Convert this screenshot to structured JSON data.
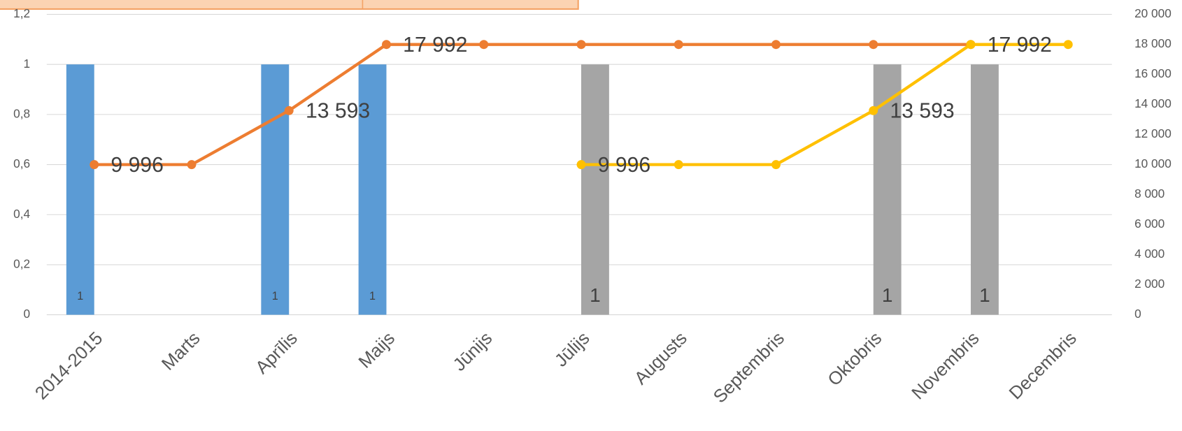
{
  "chart_data": {
    "type": "combo",
    "categories": [
      "2014-2015",
      "Marts",
      "Aprīlis",
      "Maijs",
      "Jūnijs",
      "Jūlijs",
      "Augusts",
      "Septembris",
      "Oktobris",
      "Novembris",
      "Decembris"
    ],
    "series": [
      {
        "type": "bar",
        "color": "#5b9bd5",
        "values": [
          1,
          null,
          1,
          1,
          null,
          null,
          null,
          null,
          null,
          null,
          null
        ],
        "data_labels": true
      },
      {
        "type": "bar",
        "color": "#a5a5a5",
        "values": [
          null,
          null,
          null,
          null,
          null,
          1,
          null,
          null,
          1,
          1,
          null
        ],
        "data_labels": true
      },
      {
        "type": "line",
        "axis": "y2",
        "color": "#ed7d31",
        "values": [
          9996,
          9996,
          13593,
          17992,
          17992,
          17992,
          17992,
          17992,
          17992,
          17992,
          null
        ],
        "value_labels": [
          "9 996",
          null,
          "13 593",
          "17 992",
          null,
          null,
          null,
          null,
          null,
          null,
          null
        ]
      },
      {
        "type": "line",
        "axis": "y2",
        "color": "#ffc000",
        "values": [
          null,
          null,
          null,
          null,
          null,
          9996,
          9996,
          9996,
          13593,
          17992,
          17992
        ],
        "value_labels": [
          null,
          null,
          null,
          null,
          null,
          "9 996",
          null,
          null,
          "13 593",
          "17 992",
          null
        ]
      }
    ],
    "ylim": [
      0,
      1.2
    ],
    "yticks": [
      0,
      {
        "value": 0.2,
        "label": "0,2"
      },
      {
        "value": 0.4,
        "label": "0,4"
      },
      {
        "value": 0.6,
        "label": "0,6"
      },
      {
        "value": 0.8,
        "label": "0,8"
      },
      1,
      {
        "value": 1.2,
        "label": "1,2"
      }
    ],
    "y2lim": [
      0,
      20000
    ],
    "y2ticks": [
      0,
      {
        "value": 2000,
        "label": "2 000"
      },
      {
        "value": 4000,
        "label": "4 000"
      },
      {
        "value": 6000,
        "label": "6 000"
      },
      {
        "value": 8000,
        "label": "8 000"
      },
      {
        "value": 10000,
        "label": "10 000"
      },
      {
        "value": 12000,
        "label": "12 000"
      },
      {
        "value": 14000,
        "label": "14 000"
      },
      {
        "value": 16000,
        "label": "16 000"
      },
      {
        "value": 18000,
        "label": "18 000"
      },
      {
        "value": 20000,
        "label": "20 000"
      }
    ],
    "grid": true
  }
}
